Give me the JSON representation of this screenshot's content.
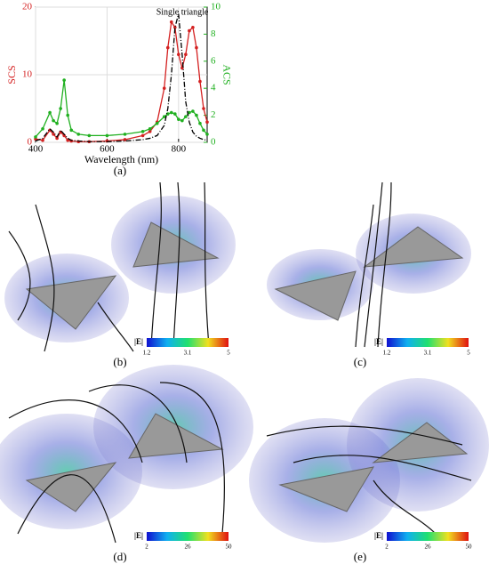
{
  "chart_data": {
    "type": "line",
    "xlabel": "Wavelength (nm)",
    "ylabel": "SCS",
    "y2label": "ACS",
    "x": [
      400,
      420,
      440,
      450,
      460,
      470,
      480,
      490,
      500,
      520,
      550,
      600,
      650,
      700,
      720,
      740,
      760,
      770,
      780,
      790,
      800,
      810,
      820,
      830,
      840,
      850,
      860,
      870,
      880
    ],
    "xlim": [
      400,
      880
    ],
    "xticks": [
      400,
      600,
      800
    ],
    "ylim": [
      0,
      20
    ],
    "yticks": [
      0,
      10,
      20
    ],
    "y2lim": [
      0,
      10
    ],
    "y2ticks": [
      0,
      2,
      4,
      6,
      8,
      10
    ],
    "ycolor": "#d42020",
    "y2color": "#20b020",
    "annotation": "Single triangle",
    "series": [
      {
        "color": "#d42020",
        "markers": true,
        "dash": "none",
        "values": [
          0.5,
          0.3,
          1.8,
          1.2,
          0.6,
          1.5,
          1.0,
          0.3,
          0.2,
          0.1,
          0.1,
          0.2,
          0.4,
          1.0,
          1.6,
          3,
          8,
          14,
          17.8,
          17,
          13,
          11,
          13,
          16.5,
          17,
          14,
          9,
          5,
          3
        ]
      },
      {
        "color": "#20b020",
        "markers": true,
        "dash": "none",
        "axis": "y2",
        "values": [
          0.4,
          1.0,
          2.2,
          1.6,
          1.4,
          2.5,
          4.6,
          2.0,
          0.9,
          0.6,
          0.5,
          0.5,
          0.6,
          0.8,
          1.0,
          1.4,
          1.9,
          2.1,
          2.2,
          2.1,
          1.7,
          1.6,
          1.9,
          2.2,
          2.3,
          2.0,
          1.4,
          0.9,
          0.6
        ]
      },
      {
        "color": "#000000",
        "markers": false,
        "dash": "6 2 1 2",
        "values": [
          0.2,
          0.6,
          2.0,
          1.5,
          0.8,
          1.8,
          1.2,
          0.6,
          0.3,
          0.2,
          0.1,
          0.1,
          0.2,
          0.4,
          0.6,
          1.0,
          2.5,
          5,
          10,
          17,
          19,
          13,
          6,
          3,
          1.5,
          0.9,
          0.6,
          0.4,
          0.3
        ]
      }
    ]
  },
  "panels": {
    "a": "(a)",
    "b": "(b)",
    "c": "(c)",
    "d": "(d)",
    "e": "(e)"
  },
  "colorbars": {
    "label": "|E|",
    "top": [
      1.2,
      3.1,
      5
    ],
    "bottom": [
      2,
      26,
      50
    ]
  }
}
